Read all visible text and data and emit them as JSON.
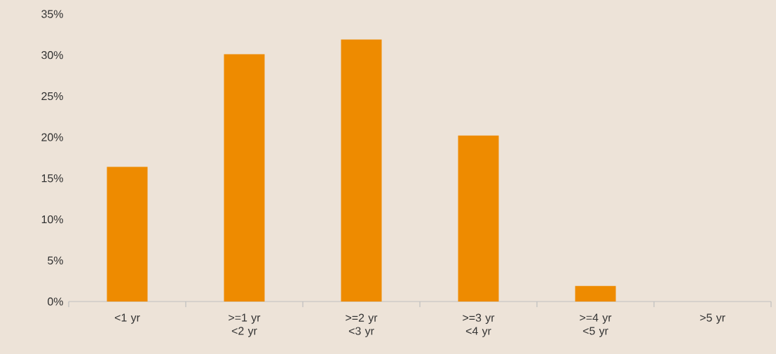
{
  "chart_data": {
    "type": "bar",
    "categories": [
      "<1 yr",
      ">=1 yr <2 yr",
      ">=2 yr <3 yr",
      ">=3 yr <4 yr",
      ">=4 yr <5 yr",
      ">5 yr"
    ],
    "values": [
      16.4,
      30.1,
      31.9,
      20.2,
      1.9,
      0
    ],
    "color": "#ee8b00",
    "ylim": [
      0,
      35
    ],
    "yticks": [
      {
        "value": 0,
        "label": "0%"
      },
      {
        "value": 5,
        "label": "5%"
      },
      {
        "value": 10,
        "label": "10%"
      },
      {
        "value": 15,
        "label": "15%"
      },
      {
        "value": 20,
        "label": "20%"
      },
      {
        "value": 25,
        "label": "25%"
      },
      {
        "value": 30,
        "label": "30%"
      },
      {
        "value": 35,
        "label": "35%"
      }
    ]
  }
}
